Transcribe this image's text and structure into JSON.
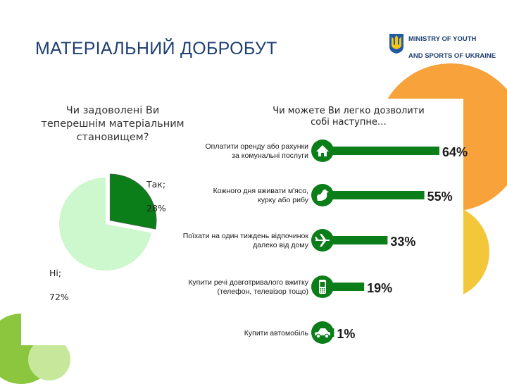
{
  "header": {
    "title": "МАТЕРІАЛЬНИЙ ДОБРОБУТ",
    "ministry_line1": "MINISTRY OF YOUTH",
    "ministry_line2": "AND SPORTS OF UKRAINE"
  },
  "icons": {
    "emblem": "trident-coat-of-arms-icon"
  },
  "colors": {
    "dark_green": "#0b7d19",
    "light_green": "#cdf7cd",
    "title_blue": "#1f3f73",
    "orange": "#f7a23a",
    "yellow": "#f3c73a",
    "lime": "#8cc63f"
  },
  "chart_data": [
    {
      "type": "pie",
      "title": "Чи задоволені Ви\nтеперешнім матеріальним\nстановищем?",
      "slices": [
        {
          "label": "Так;",
          "value": 28,
          "value_text": "28%",
          "color": "#0b7d19"
        },
        {
          "label": "Ні;",
          "value": 72,
          "value_text": "72%",
          "color": "#cdf7cd"
        }
      ]
    },
    {
      "type": "bar",
      "orientation": "horizontal",
      "title": "Чи можете Ви легко дозволити\nсобі наступне…",
      "xlim": [
        0,
        64
      ],
      "categories": [
        "Оплатити оренду або рахунки\nза комунальні послуги",
        "Кожного дня вживати м'ясо,\nкурку або рибу",
        "Поїхати на один тиждень відпочинок\nдалеко від дому",
        "Купити речі довготривалого вжитку\n(телефон, телевізор тощо)",
        "Купити автомобіль"
      ],
      "values": [
        64,
        55,
        33,
        19,
        1
      ],
      "value_labels": [
        "64%",
        "55%",
        "33%",
        "19%",
        "1%"
      ],
      "icons": [
        "house-icon",
        "rooster-icon",
        "airplane-icon",
        "phone-icon",
        "car-icon"
      ],
      "color": "#0b7d19"
    }
  ]
}
